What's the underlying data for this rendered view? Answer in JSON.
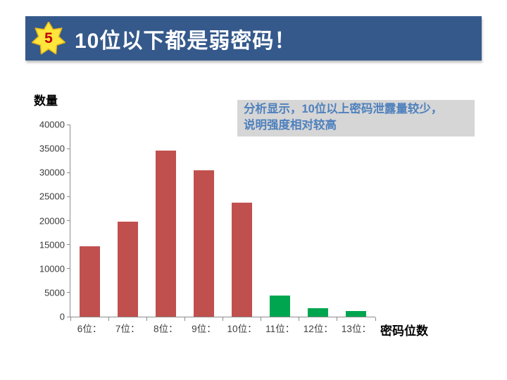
{
  "header": {
    "badge_number": "5",
    "title": "10位以下都是弱密码！",
    "banner_color": "#35598B",
    "badge_fill": "#FFE63C",
    "badge_stroke": "#E8B818",
    "badge_number_color": "#C00000"
  },
  "annotation": {
    "text": "分析显示，10位以上密码泄露量较少，\n说明强度相对较高",
    "background": "#D6D6D6",
    "text_color": "#4F81BD"
  },
  "chart_data": {
    "type": "bar",
    "title": "",
    "ylabel": "数量",
    "xlabel": "密码位数",
    "categories": [
      "6位：",
      "7位：",
      "8位：",
      "9位：",
      "10位：",
      "11位：",
      "12位：",
      "13位："
    ],
    "values": [
      14600,
      19800,
      34600,
      30500,
      23700,
      4400,
      1800,
      1200
    ],
    "bar_colors": [
      "#C0504D",
      "#C0504D",
      "#C0504D",
      "#C0504D",
      "#C0504D",
      "#00A64F",
      "#00A64F",
      "#00A64F"
    ],
    "weak_color": "#C0504D",
    "strong_color": "#00A64F",
    "ylim": [
      0,
      40000
    ],
    "yticks": [
      0,
      5000,
      10000,
      15000,
      20000,
      25000,
      30000,
      35000,
      40000
    ],
    "grid": false,
    "legend_position": "none",
    "axis_color": "#8C8C8C"
  }
}
